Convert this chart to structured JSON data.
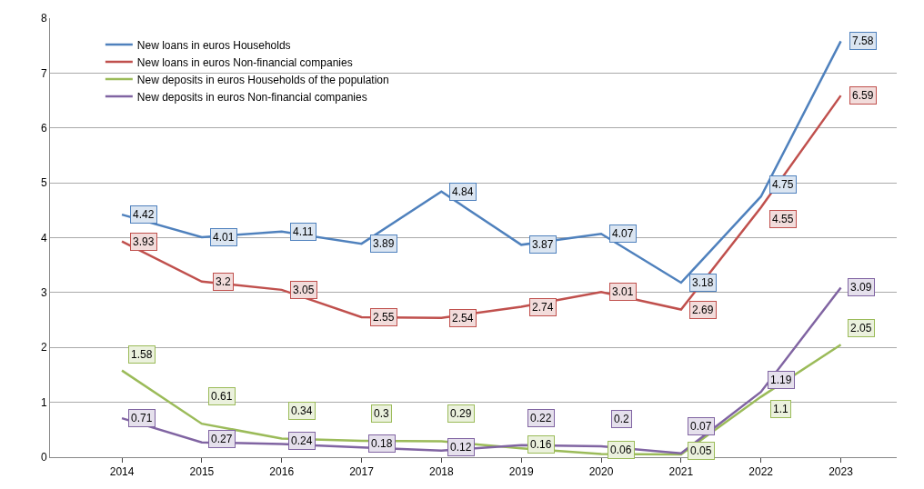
{
  "chart_data": {
    "type": "line",
    "categories": [
      "2014",
      "2015",
      "2016",
      "2017",
      "2018",
      "2019",
      "2020",
      "2021",
      "2022",
      "2023"
    ],
    "series": [
      {
        "name": "New loans in euros Households",
        "color": "#4f81bd",
        "values": [
          4.42,
          4.01,
          4.11,
          3.89,
          4.84,
          3.87,
          4.07,
          3.18,
          4.75,
          7.58
        ]
      },
      {
        "name": "New loans in euros Non-financial companies",
        "color": "#c0504d",
        "values": [
          3.93,
          3.2,
          3.05,
          2.55,
          2.54,
          2.74,
          3.01,
          2.69,
          4.55,
          6.59
        ]
      },
      {
        "name": "New deposits in euros Households of the population",
        "color": "#9bbb59",
        "values": [
          1.58,
          0.61,
          0.34,
          0.3,
          0.29,
          0.16,
          0.06,
          0.05,
          1.1,
          2.05
        ]
      },
      {
        "name": "New deposits in euros Non-financial companies",
        "color": "#8064a2",
        "values": [
          0.71,
          0.27,
          0.24,
          0.18,
          0.12,
          0.22,
          0.2,
          0.07,
          1.19,
          3.09
        ]
      }
    ],
    "ylim": [
      0,
      8
    ],
    "yticks": [
      0,
      1,
      2,
      3,
      4,
      5,
      6,
      7,
      8
    ],
    "grid": "y",
    "legend": "top left",
    "marker": "none",
    "line_style": "solid",
    "data_labels": true
  }
}
